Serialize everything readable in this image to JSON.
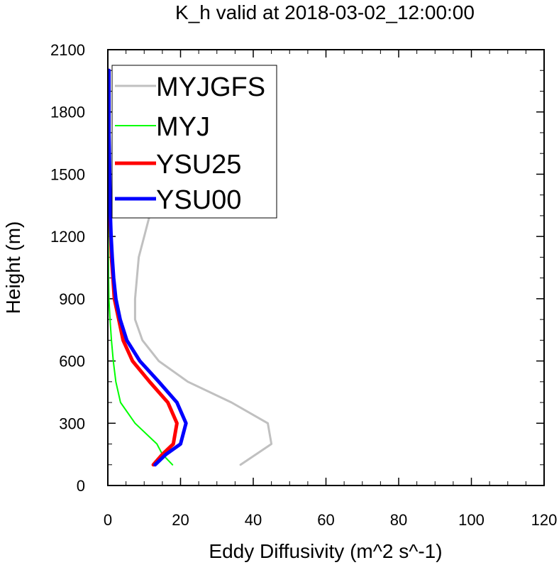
{
  "chart_data": {
    "type": "line",
    "title": "K_h valid at 2018-03-02_12:00:00",
    "xlabel": "Eddy Diffusivity (m^2 s^-1)",
    "ylabel": "Height (m)",
    "xlim": [
      0,
      120
    ],
    "ylim": [
      0,
      2100
    ],
    "xticks": [
      0,
      20,
      40,
      60,
      80,
      100,
      120
    ],
    "yticks": [
      0,
      300,
      600,
      900,
      1200,
      1500,
      1800,
      2100
    ],
    "grid": false,
    "legend_position": "top-left",
    "series": [
      {
        "name": "MYJGFS",
        "color": "#c0c0c0",
        "points": [
          [
            36.5,
            100
          ],
          [
            45,
            200
          ],
          [
            44,
            300
          ],
          [
            34,
            400
          ],
          [
            22,
            500
          ],
          [
            14,
            600
          ],
          [
            9.5,
            700
          ],
          [
            7.5,
            800
          ],
          [
            7.5,
            900
          ],
          [
            8,
            1000
          ],
          [
            8.5,
            1100
          ],
          [
            10,
            1200
          ],
          [
            11.5,
            1300
          ],
          [
            12.5,
            1400
          ],
          [
            13.5,
            1500
          ],
          [
            14,
            1600
          ],
          [
            14.5,
            1700
          ],
          [
            15,
            1800
          ],
          [
            15.5,
            1900
          ],
          [
            15.5,
            2000
          ]
        ]
      },
      {
        "name": "MYJ",
        "color": "#00ff00",
        "points": [
          [
            17.8,
            100
          ],
          [
            15,
            150
          ],
          [
            13.5,
            200
          ],
          [
            7.5,
            300
          ],
          [
            3.5,
            400
          ],
          [
            2.2,
            500
          ],
          [
            1.5,
            600
          ],
          [
            1,
            700
          ],
          [
            0.6,
            800
          ],
          [
            0.3,
            900
          ],
          [
            0.2,
            1000
          ],
          [
            0.1,
            1200
          ],
          [
            0.1,
            1500
          ],
          [
            0.1,
            1800
          ],
          [
            0.1,
            2000
          ]
        ]
      },
      {
        "name": "YSU25",
        "color": "#ff0000",
        "points": [
          [
            12.5,
            100
          ],
          [
            15,
            150
          ],
          [
            18,
            200
          ],
          [
            19,
            300
          ],
          [
            16.5,
            400
          ],
          [
            11.5,
            500
          ],
          [
            6.8,
            600
          ],
          [
            4.2,
            700
          ],
          [
            3,
            800
          ],
          [
            1.8,
            900
          ],
          [
            1.4,
            1000
          ],
          [
            1,
            1100
          ],
          [
            0.8,
            1200
          ],
          [
            0.6,
            1300
          ],
          [
            0.5,
            1400
          ],
          [
            0.4,
            1500
          ],
          [
            0.3,
            1600
          ],
          [
            0.3,
            1700
          ],
          [
            0.3,
            1800
          ],
          [
            0.3,
            1900
          ],
          [
            0.3,
            2000
          ]
        ]
      },
      {
        "name": "YSU00",
        "color": "#0000ff",
        "points": [
          [
            13,
            100
          ],
          [
            16,
            150
          ],
          [
            20,
            200
          ],
          [
            21.5,
            300
          ],
          [
            19,
            400
          ],
          [
            14,
            500
          ],
          [
            8.8,
            600
          ],
          [
            5.2,
            700
          ],
          [
            3.4,
            800
          ],
          [
            2.2,
            900
          ],
          [
            1.6,
            1000
          ],
          [
            1.2,
            1100
          ],
          [
            0.9,
            1200
          ],
          [
            0.7,
            1300
          ],
          [
            0.6,
            1400
          ],
          [
            0.5,
            1500
          ],
          [
            0.4,
            1600
          ],
          [
            0.3,
            1700
          ],
          [
            0.3,
            1800
          ],
          [
            0.3,
            1900
          ],
          [
            0.3,
            2000
          ]
        ]
      }
    ]
  }
}
